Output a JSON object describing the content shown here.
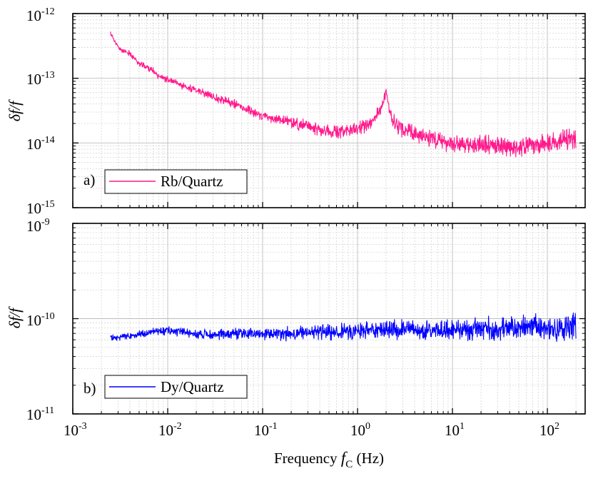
{
  "chart_data": [
    {
      "type": "line",
      "panel_tag": "a)",
      "ylabel": "δf/f",
      "xscale": "log",
      "yscale": "log",
      "xlim": [
        0.001,
        250
      ],
      "ylim": [
        1e-15,
        1e-12
      ],
      "grid": true,
      "y_tick_labels": [
        {
          "base": "10",
          "exp": "-15"
        },
        {
          "base": "10",
          "exp": "-14"
        },
        {
          "base": "10",
          "exp": "-13"
        },
        {
          "base": "10",
          "exp": "-12"
        }
      ],
      "legend_position": "bottom-left",
      "series": [
        {
          "name": "Rb/Quartz",
          "color": "#ff1a8c",
          "x": [
            0.0025,
            0.003,
            0.0033,
            0.004,
            0.005,
            0.006,
            0.007,
            0.008,
            0.01,
            0.012,
            0.015,
            0.02,
            0.03,
            0.05,
            0.07,
            0.1,
            0.15,
            0.2,
            0.3,
            0.5,
            0.7,
            1.0,
            1.3,
            1.6,
            1.8,
            2.0,
            2.2,
            2.5,
            3.0,
            5.0,
            7.0,
            10,
            15,
            20,
            30,
            50,
            70,
            100,
            150,
            200
          ],
          "values": [
            5e-13,
            3e-13,
            2.7e-13,
            2.4e-13,
            1.7e-13,
            1.5e-13,
            1.3e-13,
            1.1e-13,
            9.5e-14,
            8.5e-14,
            7.5e-14,
            6.5e-14,
            5.2e-14,
            4e-14,
            3.3e-14,
            2.6e-14,
            2.3e-14,
            2.1e-14,
            1.8e-14,
            1.5e-14,
            1.5e-14,
            1.6e-14,
            2e-14,
            2.6e-14,
            3.5e-14,
            6e-14,
            2.8e-14,
            2e-14,
            1.6e-14,
            1.3e-14,
            1.1e-14,
            9.5e-15,
            9e-15,
            9.5e-15,
            9e-15,
            8.5e-15,
            9e-15,
            1e-14,
            1.1e-14,
            1.2e-14
          ]
        }
      ]
    },
    {
      "type": "line",
      "panel_tag": "b)",
      "ylabel": "δf/f",
      "xlabel": "Frequency",
      "xlabel_symbol": "f",
      "xlabel_subscript": "C",
      "xlabel_unit": "(Hz)",
      "xscale": "log",
      "yscale": "log",
      "xlim": [
        0.001,
        250
      ],
      "ylim": [
        1e-11,
        1e-09
      ],
      "grid": true,
      "y_tick_labels": [
        {
          "base": "10",
          "exp": "-11"
        },
        {
          "base": "10",
          "exp": "-10"
        },
        {
          "base": "10",
          "exp": "-9"
        }
      ],
      "x_tick_labels": [
        {
          "base": "10",
          "exp": "-3"
        },
        {
          "base": "10",
          "exp": "-2"
        },
        {
          "base": "10",
          "exp": "-1"
        },
        {
          "base": "10",
          "exp": "0"
        },
        {
          "base": "10",
          "exp": "1"
        },
        {
          "base": "10",
          "exp": "2"
        }
      ],
      "legend_position": "bottom-left",
      "series": [
        {
          "name": "Dy/Quartz",
          "color": "#0000ff",
          "x": [
            0.0025,
            0.004,
            0.007,
            0.01,
            0.015,
            0.02,
            0.03,
            0.05,
            0.07,
            0.1,
            0.2,
            0.5,
            1.0,
            2.0,
            5.0,
            10,
            20,
            50,
            70,
            100,
            150,
            200
          ],
          "values": [
            6.3e-11,
            6.5e-11,
            7.3e-11,
            7.5e-11,
            7.2e-11,
            6.8e-11,
            6.8e-11,
            7e-11,
            7e-11,
            7e-11,
            7e-11,
            7.2e-11,
            7.5e-11,
            7.6e-11,
            7.6e-11,
            7.8e-11,
            7.8e-11,
            8e-11,
            8.2e-11,
            8e-11,
            8.2e-11,
            8.5e-11
          ]
        }
      ]
    }
  ]
}
